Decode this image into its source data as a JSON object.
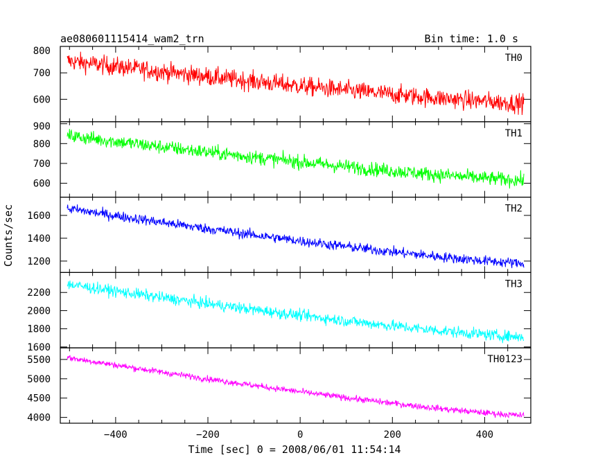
{
  "chart_data": {
    "type": "line",
    "title": "ae080601115414_wam2_trn",
    "bin_time": "Bin time: 1.0 s",
    "xlabel": "Time [sec] 0 = 2008/06/01 11:54:14",
    "ylabel": "Counts/sec",
    "xlim": [
      -520,
      500
    ],
    "x_data_range": [
      -505,
      485
    ],
    "x_ticks": [
      -400,
      -200,
      0,
      200,
      400
    ],
    "x_tick_labels": [
      "−400",
      "−200",
      "0",
      "200",
      "400"
    ],
    "grid": false,
    "panels": [
      {
        "name": "TH0",
        "color": "#ff0000",
        "ylim": [
          515,
          800
        ],
        "ticks": [
          600,
          700,
          800
        ],
        "trend": {
          "start": 745,
          "end": 585
        },
        "noise": 40
      },
      {
        "name": "TH1",
        "color": "#00ff00",
        "ylim": [
          530,
          910
        ],
        "ticks": [
          600,
          700,
          800,
          900
        ],
        "trend": {
          "start": 840,
          "end": 615
        },
        "noise": 40
      },
      {
        "name": "TH2",
        "color": "#0000ff",
        "ylim": [
          1100,
          1760
        ],
        "ticks": [
          1200,
          1400,
          1600
        ],
        "trend": {
          "start": 1660,
          "end": 1180
        },
        "noise": 50
      },
      {
        "name": "TH3",
        "color": "#00ffff",
        "ylim": [
          1590,
          2420
        ],
        "ticks": [
          1600,
          1800,
          2000,
          2200
        ],
        "trend": {
          "start": 2290,
          "end": 1710
        },
        "noise": 70
      },
      {
        "name": "TH0123",
        "color": "#ff00ff",
        "ylim": [
          3850,
          5800
        ],
        "ticks": [
          4000,
          4500,
          5000,
          5500
        ],
        "trend": {
          "start": 5550,
          "end": 4050
        },
        "noise": 90
      }
    ]
  }
}
